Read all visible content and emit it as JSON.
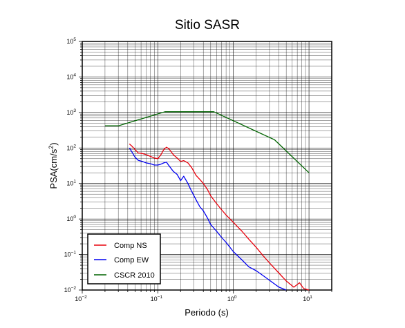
{
  "chart_data": {
    "type": "line",
    "title": "Sitio SASR",
    "xlabel": "Periodo (s)",
    "ylabel": {
      "base": "PSA(cm/s",
      "exp": "2",
      "close": ")"
    },
    "xscale": "log",
    "yscale": "log",
    "xlim": [
      0.01,
      20
    ],
    "ylim": [
      0.01,
      100000
    ],
    "grid": true,
    "x_ticks": [
      {
        "value": 0.01,
        "base": "10",
        "exp": "−2"
      },
      {
        "value": 0.1,
        "base": "10",
        "exp": "−1"
      },
      {
        "value": 1,
        "base": "10",
        "exp": "0"
      },
      {
        "value": 10,
        "base": "10",
        "exp": "1"
      }
    ],
    "y_ticks": [
      {
        "value": 0.01,
        "base": "10",
        "exp": "−2"
      },
      {
        "value": 0.1,
        "base": "10",
        "exp": "−1"
      },
      {
        "value": 1,
        "base": "10",
        "exp": "0"
      },
      {
        "value": 10,
        "base": "10",
        "exp": "1"
      },
      {
        "value": 100,
        "base": "10",
        "exp": "2"
      },
      {
        "value": 1000,
        "base": "10",
        "exp": "3"
      },
      {
        "value": 10000,
        "base": "10",
        "exp": "4"
      },
      {
        "value": 100000,
        "base": "10",
        "exp": "5"
      }
    ],
    "legend_position": "bottom-left",
    "series": [
      {
        "name": "Comp NS",
        "color": "#e8000b",
        "x": [
          0.042,
          0.045,
          0.05,
          0.055,
          0.062,
          0.07,
          0.08,
          0.09,
          0.1,
          0.11,
          0.12,
          0.13,
          0.14,
          0.16,
          0.18,
          0.2,
          0.22,
          0.25,
          0.28,
          0.32,
          0.36,
          0.4,
          0.45,
          0.5,
          0.6,
          0.7,
          0.8,
          1.0,
          1.3,
          1.6,
          2.0,
          2.5,
          3.2,
          4.0,
          5.0,
          6.3,
          7.5,
          8.5,
          10.0
        ],
        "y": [
          130,
          115,
          90,
          72,
          70,
          65,
          58,
          52,
          50,
          65,
          90,
          105,
          95,
          65,
          52,
          42,
          44,
          38,
          28,
          17,
          13,
          10,
          7,
          4.5,
          2.7,
          1.8,
          1.3,
          0.8,
          0.45,
          0.27,
          0.16,
          0.09,
          0.05,
          0.03,
          0.018,
          0.012,
          0.016,
          0.011,
          0.01
        ]
      },
      {
        "name": "Comp EW",
        "color": "#0000f0",
        "x": [
          0.042,
          0.045,
          0.05,
          0.055,
          0.062,
          0.07,
          0.08,
          0.09,
          0.1,
          0.11,
          0.12,
          0.13,
          0.14,
          0.16,
          0.18,
          0.2,
          0.22,
          0.25,
          0.28,
          0.32,
          0.36,
          0.4,
          0.45,
          0.5,
          0.6,
          0.7,
          0.8,
          1.0,
          1.3,
          1.6,
          2.0,
          2.5,
          3.2,
          4.0,
          5.0
        ],
        "y": [
          100,
          80,
          55,
          45,
          42,
          38,
          36,
          33,
          33,
          35,
          38,
          40,
          32,
          22,
          18,
          12,
          16,
          10,
          6,
          3.5,
          2.2,
          1.7,
          1.1,
          0.7,
          0.45,
          0.3,
          0.22,
          0.12,
          0.07,
          0.045,
          0.035,
          0.025,
          0.017,
          0.012,
          0.01
        ]
      },
      {
        "name": "CSCR 2010",
        "color": "#006400",
        "x": [
          0.02,
          0.03,
          0.125,
          0.55,
          3.5,
          10.0
        ],
        "y": [
          420,
          420,
          1050,
          1050,
          170,
          20
        ]
      }
    ]
  }
}
